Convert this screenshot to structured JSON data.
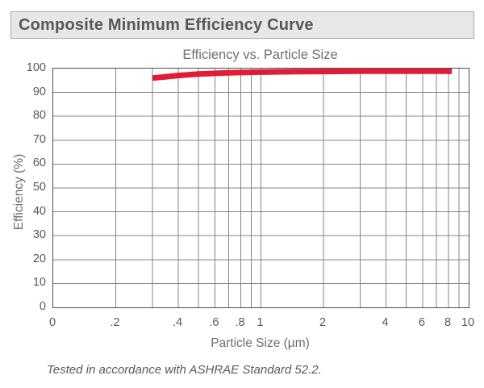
{
  "header": {
    "title": "Composite Minimum Efficiency Curve"
  },
  "chart_data": {
    "type": "line",
    "title": "Efficiency vs. Particle Size",
    "xlabel": "Particle Size (µm)",
    "ylabel": "Efficiency (%)",
    "x_scale": "log",
    "xlim": [
      0.1,
      10
    ],
    "ylim": [
      0,
      100
    ],
    "grid": true,
    "legend": "none",
    "x_tick_labels": [
      "0",
      ".2",
      ".4",
      ".6",
      ".8",
      "1",
      "2",
      "4",
      "6",
      "8",
      "10"
    ],
    "x_gridlines": [
      0.2,
      0.3,
      0.4,
      0.5,
      0.6,
      0.7,
      0.8,
      0.9,
      1,
      2,
      3,
      4,
      5,
      6,
      7,
      8,
      9
    ],
    "y_ticks": [
      0,
      10,
      20,
      30,
      40,
      50,
      60,
      70,
      80,
      90,
      100
    ],
    "y_gridlines": [
      10,
      20,
      30,
      40,
      50,
      60,
      70,
      80,
      90
    ],
    "series": [
      {
        "name": "Composite minimum efficiency",
        "color": "#e11c35",
        "stroke_width": 7,
        "points": [
          [
            0.3,
            96.0
          ],
          [
            0.35,
            96.6
          ],
          [
            0.4,
            97.1
          ],
          [
            0.5,
            97.7
          ],
          [
            0.6,
            98.0
          ],
          [
            0.7,
            98.2
          ],
          [
            0.8,
            98.35
          ],
          [
            1.0,
            98.5
          ],
          [
            1.5,
            98.7
          ],
          [
            2.0,
            98.8
          ],
          [
            3.0,
            98.9
          ],
          [
            4.0,
            98.9
          ],
          [
            5.0,
            98.9
          ],
          [
            6.0,
            98.9
          ],
          [
            7.0,
            98.9
          ],
          [
            8.3,
            98.9
          ]
        ]
      }
    ]
  },
  "footer": {
    "note": "Tested in accordance with ASHRAE Standard 52.2."
  },
  "colors": {
    "curve_red": "#e11c35",
    "gridline": "#848587",
    "plot_frame": "#4c4d4f",
    "header_bg": "#e7e7e8",
    "header_border": "#a8aaad",
    "header_text": "#565759",
    "label_text": "#6d6e71",
    "tick_text": "#58595b"
  }
}
